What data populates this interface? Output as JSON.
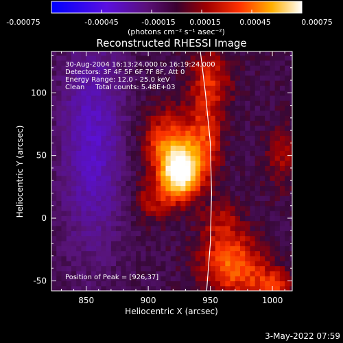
{
  "chart_data": {
    "type": "heatmap",
    "title": "Reconstructed RHESSI Image",
    "xlabel": "Heliocentric X (arcsec)",
    "ylabel": "Heliocentric Y (arcsec)",
    "xlim": [
      822,
      1016
    ],
    "ylim": [
      -58,
      133
    ],
    "x_ticks": [
      850,
      900,
      950,
      1000
    ],
    "y_ticks": [
      -50,
      0,
      50,
      100
    ],
    "colorbar": {
      "min": -0.00075,
      "max": 0.00075,
      "ticks": [
        "-0.00075",
        "-0.00045",
        "-0.00015",
        "0.00015",
        "0.00045",
        "0.00075"
      ],
      "units_label": "(photons cm⁻² s⁻¹ asec⁻²)",
      "colors": [
        "#0000ff",
        "#7000c0",
        "#3a0040",
        "#a00000",
        "#ff4000",
        "#ffc000",
        "#ffffff"
      ]
    },
    "annotations": [
      "30-Aug-2004 16:13:24.000 to 16:19:24.000",
      "Detectors: 3F 4F 5F 6F 7F 8F, Att 0",
      "Energy Range: 12.0 - 25.0 keV",
      "Clean     Total counts: 5.48E+03"
    ],
    "peak_label": "Position of Peak = [926,37]",
    "peak_position": [
      926,
      37
    ],
    "limb_points": [
      [
        942,
        133
      ],
      [
        946,
        100
      ],
      [
        950,
        60
      ],
      [
        951,
        20
      ],
      [
        950,
        -20
      ],
      [
        947,
        -58
      ]
    ],
    "blobs": [
      {
        "x": 926,
        "y": 37,
        "sx": 10,
        "sy": 14,
        "amp": 0.00082
      },
      {
        "x": 915,
        "y": 60,
        "sx": 14,
        "sy": 18,
        "amp": 0.00038
      },
      {
        "x": 945,
        "y": 60,
        "sx": 10,
        "sy": 22,
        "amp": 0.0003
      },
      {
        "x": 950,
        "y": 110,
        "sx": 12,
        "sy": 20,
        "amp": 0.00028
      },
      {
        "x": 905,
        "y": 15,
        "sx": 12,
        "sy": 12,
        "amp": 0.00022
      },
      {
        "x": 968,
        "y": -38,
        "sx": 18,
        "sy": 16,
        "amp": 0.00042
      },
      {
        "x": 960,
        "y": -5,
        "sx": 12,
        "sy": 14,
        "amp": 0.0002
      },
      {
        "x": 1000,
        "y": -55,
        "sx": 12,
        "sy": 10,
        "amp": 0.0003
      },
      {
        "x": 1008,
        "y": 50,
        "sx": 10,
        "sy": 18,
        "amp": 0.00018
      },
      {
        "x": 855,
        "y": 60,
        "sx": 18,
        "sy": 60,
        "amp": -0.00032
      }
    ]
  },
  "footer_timestamp": "3-May-2022 07:59"
}
